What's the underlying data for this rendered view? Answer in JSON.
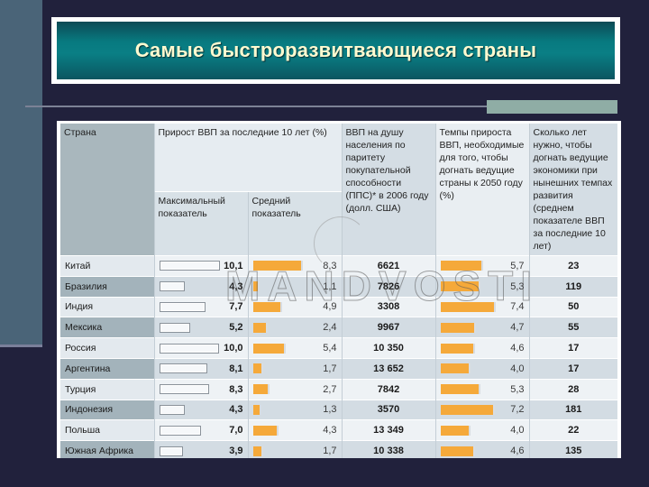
{
  "slide": {
    "title": "Самые быстроразвитвающиеся страны",
    "colors": {
      "background": "#21213c",
      "title_bg": "#087a80",
      "title_text": "#fffad0",
      "bar_accent": "#f5a93a"
    }
  },
  "table": {
    "headers": {
      "country": "Страна",
      "gdp_growth_group": "Прирост ВВП за последние 10 лет (%)",
      "max": "Максимальный показатель",
      "avg": "Средний показатель",
      "gdp_per_capita": "ВВП на душу населения по паритету покупательной способности (ППС)* в 2006 году (долл. США)",
      "required_growth": "Темпы прироста ВВП, необходимые для того, чтобы догнать ведущие страны к 2050 году (%)",
      "years_to_catch_up": "Сколько лет нужно, чтобы догнать ведущие экономики при нынешних темпах развития (среднем показателе ВВП за последние 10 лет)"
    },
    "rows": [
      {
        "country": "Китай",
        "max": "10,1",
        "avg": "8,3",
        "gdp_pc": "6621",
        "req": "5,7",
        "years": "23",
        "style": "light"
      },
      {
        "country": "Бразилия",
        "max": "4,3",
        "avg": "1,1",
        "gdp_pc": "7826",
        "req": "5,3",
        "years": "119",
        "style": "dark"
      },
      {
        "country": "Индия",
        "max": "7,7",
        "avg": "4,9",
        "gdp_pc": "3308",
        "req": "7,4",
        "years": "50",
        "style": "light"
      },
      {
        "country": "Мексика",
        "max": "5,2",
        "avg": "2,4",
        "gdp_pc": "9967",
        "req": "4,7",
        "years": "55",
        "style": "dark"
      },
      {
        "country": "Россия",
        "max": "10,0",
        "avg": "5,4",
        "gdp_pc": "10 350",
        "req": "4,6",
        "years": "17",
        "style": "light"
      },
      {
        "country": "Аргентина",
        "max": "8,1",
        "avg": "1,7",
        "gdp_pc": "13 652",
        "req": "4,0",
        "years": "17",
        "style": "dark"
      },
      {
        "country": "Турция",
        "max": "8,3",
        "avg": "2,7",
        "gdp_pc": "7842",
        "req": "5,3",
        "years": "28",
        "style": "light"
      },
      {
        "country": "Индонезия",
        "max": "4,3",
        "avg": "1,3",
        "gdp_pc": "3570",
        "req": "7,2",
        "years": "181",
        "style": "dark"
      },
      {
        "country": "Польша",
        "max": "7,0",
        "avg": "4,3",
        "gdp_pc": "13 349",
        "req": "4,0",
        "years": "22",
        "style": "light"
      },
      {
        "country": "Южная Африка",
        "max": "3,9",
        "avg": "1,7",
        "gdp_pc": "10 338",
        "req": "4,6",
        "years": "135",
        "style": "dark"
      }
    ]
  },
  "watermark": {
    "text": "MANDVOSTI"
  }
}
